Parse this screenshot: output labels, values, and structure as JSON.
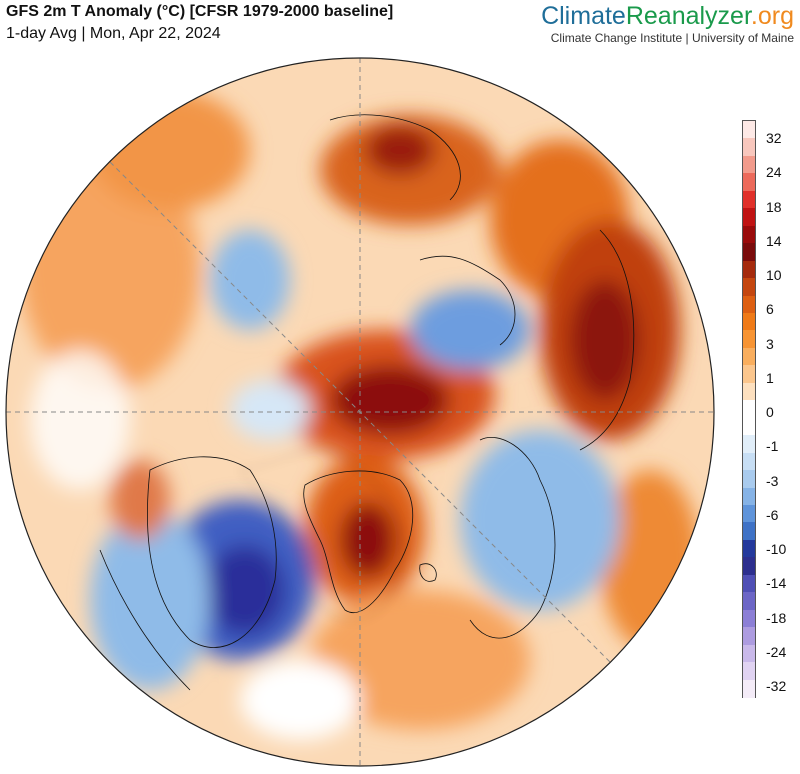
{
  "header": {
    "title": "GFS 2m T Anomaly (°C) [CFSR 1979-2000 baseline]",
    "subtitle": "1-day Avg | Mon, Apr 22, 2024"
  },
  "brand": {
    "logo_part1": "Climate",
    "logo_part2": "Reanalyzer",
    "logo_part3": ".org",
    "tagline": "Climate Change Institute | University of Maine",
    "colors": {
      "climate": "#1f6e99",
      "reanalyzer": "#1a9a4b",
      "org": "#f08a1f"
    }
  },
  "map": {
    "projection": "north polar orthographic",
    "grid": "dashed meridian and equator lines",
    "anomaly_colors": {
      "strong_warm": "#8c0a0a",
      "warm": "#d9531e",
      "mild_warm": "#f4a35c",
      "slight_warm": "#fbd3a6",
      "neutral": "#ffffff",
      "slight_cold": "#d6e7f7",
      "cold": "#8fbbe8",
      "strong_cold": "#3f5fc2",
      "very_cold": "#2b2d9a"
    }
  },
  "colorbar": {
    "labels": [
      "32",
      "24",
      "18",
      "14",
      "10",
      "6",
      "3",
      "1",
      "0",
      "-1",
      "-3",
      "-6",
      "-10",
      "-14",
      "-18",
      "-24",
      "-32"
    ],
    "colors": [
      "#fde9e6",
      "#f8c7bd",
      "#f29b8c",
      "#ec6a5b",
      "#e0302a",
      "#c01313",
      "#9a0b0b",
      "#7a0b0b",
      "#a52a0d",
      "#c4460f",
      "#dd5f12",
      "#ef7a17",
      "#f79433",
      "#f9ae5e",
      "#fbc68d",
      "#fde0bf",
      "#ffffff",
      "#ffffff",
      "#e1eef9",
      "#c7def4",
      "#a9cbee",
      "#86b3e6",
      "#5f94da",
      "#3f72c6",
      "#24399c",
      "#2d2f8e",
      "#4f4fb5",
      "#6c66c6",
      "#8c7fd6",
      "#ad9ce0",
      "#c9b9ea",
      "#e0d3f2",
      "#f4ecf8"
    ]
  }
}
